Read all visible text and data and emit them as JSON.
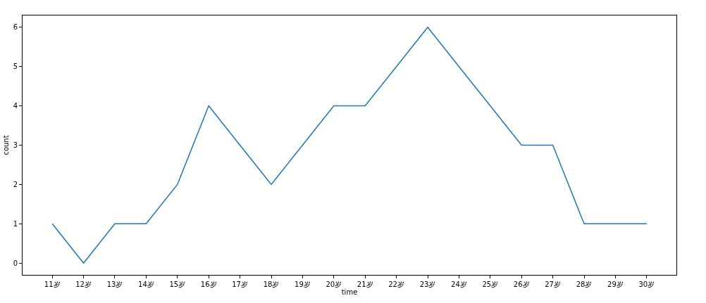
{
  "chart_data": {
    "type": "line",
    "xlabel": "time",
    "ylabel": "count",
    "categories": [
      "11岁",
      "12岁",
      "13岁",
      "14岁",
      "15岁",
      "16岁",
      "17岁",
      "18岁",
      "19岁",
      "20岁",
      "21岁",
      "22岁",
      "23岁",
      "24岁",
      "25岁",
      "26岁",
      "27岁",
      "28岁",
      "29岁",
      "30岁"
    ],
    "series": [
      {
        "color": "#1f77b4",
        "values": [
          1,
          0,
          1,
          1,
          2,
          4,
          3,
          2,
          3,
          4,
          4,
          5,
          6,
          5,
          4,
          3,
          3,
          1,
          1,
          1
        ]
      }
    ],
    "ylim": [
      -0.3,
      6.3
    ],
    "yticks": [
      0,
      1,
      2,
      3,
      4,
      5,
      6
    ],
    "grid": false,
    "marker": "none",
    "line_style": "solid"
  }
}
